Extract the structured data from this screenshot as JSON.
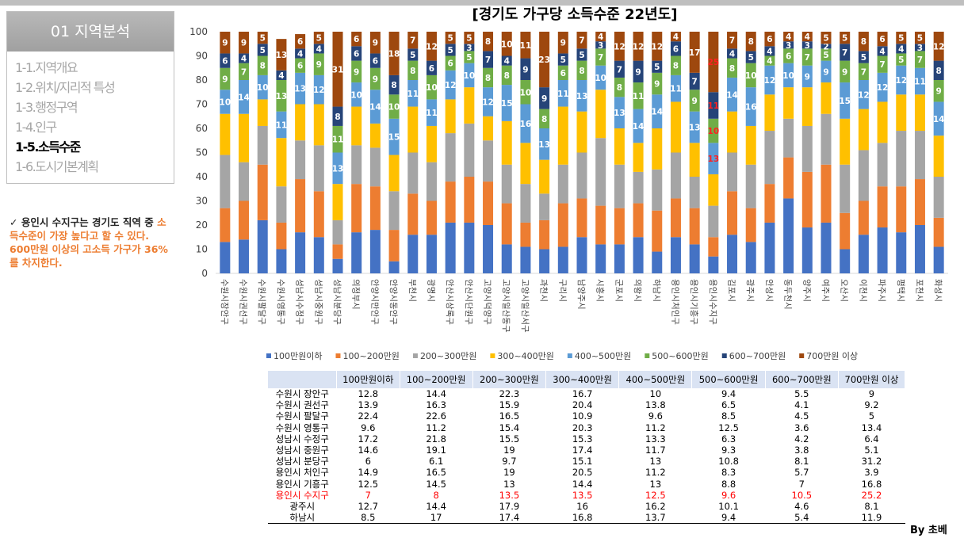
{
  "sidebar": {
    "header": "01 지역분석",
    "items": [
      "1-1.지역개요",
      "1-2.위치/지리적 특성",
      "1-3.행정구역",
      "1-4.인구",
      "1-5.소득수준",
      "1-6.도시기본계획"
    ]
  },
  "note": {
    "text": "✓ 용인시 수지구는 경기도 직역 중 ",
    "highlight": "소득수준이 가장 높다고 할 수 있다. 600만원 이상의 고소득 가구가 36%를 차지한다."
  },
  "chart_data": {
    "type": "stacked_bar",
    "title": "[경기도 가구당 소득수준 22년도]",
    "categories": [
      "수원시장안구",
      "수원시권선구",
      "수원시팔달구",
      "수원시영통구",
      "성남시수정구",
      "성남시중원구",
      "성남시분당구",
      "의정부시",
      "안양시만안구",
      "안양시동안구",
      "부천시",
      "광명시",
      "안산시상록구",
      "안산시단원구",
      "고양시덕양구",
      "고양시일산동구",
      "고양시일산서구",
      "과천시",
      "구리시",
      "남양주시",
      "시흥시",
      "군포시",
      "의왕시",
      "하남시",
      "용인시처인구",
      "용인시기흥구",
      "용인시수지구",
      "김포시",
      "광주시",
      "안성시",
      "동두천시",
      "양주시",
      "여주시",
      "오산시",
      "이천시",
      "파주시",
      "평택시",
      "포천시",
      "화성시"
    ],
    "series": [
      {
        "name": "100만원이하",
        "color": "#4472c4",
        "values": [
          13,
          14,
          22,
          10,
          17,
          15,
          6,
          17,
          18,
          5,
          16,
          16,
          21,
          21,
          20,
          12,
          11,
          10,
          11,
          15,
          12,
          12,
          15,
          9,
          15,
          12,
          7,
          16,
          13,
          21,
          31,
          19,
          21,
          10,
          16,
          19,
          17,
          20,
          11
        ]
      },
      {
        "name": "100~200만원",
        "color": "#ed7d31",
        "values": [
          14,
          16,
          23,
          11,
          22,
          19,
          6,
          20,
          18,
          13,
          17,
          14,
          17,
          19,
          18,
          17,
          10,
          12,
          18,
          16,
          16,
          15,
          14,
          17,
          16,
          15,
          8,
          18,
          14,
          16,
          17,
          23,
          24,
          15,
          14,
          17,
          19,
          19,
          12
        ]
      },
      {
        "name": "200~300만원",
        "color": "#a5a5a5",
        "values": [
          22,
          16,
          16,
          15,
          16,
          19,
          10,
          16,
          16,
          16,
          17,
          16,
          20,
          22,
          17,
          16,
          16,
          11,
          16,
          19,
          28,
          18,
          13,
          17,
          19,
          13,
          13,
          16,
          18,
          22,
          16,
          19,
          21,
          20,
          21,
          18,
          23,
          20,
          17
        ]
      },
      {
        "name": "300~400만원",
        "color": "#ffc000",
        "values": [
          17,
          20,
          11,
          20,
          15,
          17,
          15,
          16,
          10,
          15,
          19,
          15,
          14,
          15,
          10,
          18,
          17,
          14,
          24,
          17,
          20,
          15,
          12,
          17,
          21,
          14,
          13,
          17,
          16,
          15,
          13,
          16,
          13,
          19,
          17,
          17,
          15,
          15,
          17
        ]
      },
      {
        "name": "400~500만원",
        "color": "#5b9bd5",
        "values": [
          10,
          14,
          10,
          11,
          13,
          12,
          13,
          10,
          14,
          15,
          11,
          11,
          12,
          10,
          12,
          15,
          16,
          13,
          11,
          13,
          10,
          13,
          14,
          14,
          11,
          13,
          13,
          14,
          16,
          12,
          10,
          9,
          9,
          15,
          12,
          12,
          12,
          11,
          14
        ]
      },
      {
        "name": "500~600만원",
        "color": "#70ad47",
        "values": [
          9,
          7,
          8,
          13,
          6,
          9,
          11,
          9,
          9,
          10,
          8,
          10,
          6,
          5,
          8,
          8,
          10,
          8,
          6,
          8,
          7,
          8,
          11,
          9,
          8,
          9,
          10,
          8,
          10,
          4,
          6,
          7,
          5,
          9,
          7,
          7,
          5,
          7,
          9
        ]
      },
      {
        "name": "600~700만원",
        "color": "#264478",
        "values": [
          6,
          4,
          5,
          4,
          4,
          4,
          8,
          6,
          6,
          8,
          5,
          6,
          5,
          3,
          7,
          4,
          9,
          9,
          5,
          5,
          3,
          7,
          9,
          5,
          6,
          7,
          11,
          4,
          5,
          4,
          3,
          3,
          2,
          7,
          5,
          4,
          4,
          3,
          8
        ]
      },
      {
        "name": "700만원 이상",
        "color": "#9e480e",
        "values": [
          9,
          9,
          5,
          13,
          6,
          5,
          31,
          6,
          9,
          18,
          7,
          12,
          5,
          5,
          8,
          10,
          11,
          23,
          9,
          7,
          4,
          12,
          12,
          12,
          4,
          17,
          25,
          7,
          8,
          6,
          4,
          4,
          5,
          5,
          8,
          6,
          5,
          5,
          12
        ]
      }
    ],
    "ylim": [
      0,
      100
    ],
    "yticks": [
      0,
      10,
      20,
      30,
      40,
      50,
      60,
      70,
      80,
      90,
      100
    ],
    "legend": "bottom"
  },
  "table": {
    "rows": [
      [
        "수원시 장안구",
        12.8,
        14.4,
        22.3,
        16.7,
        10,
        9.4,
        5.5,
        9
      ],
      [
        "수원시 권선구",
        13.9,
        16.3,
        15.9,
        20.4,
        13.8,
        6.5,
        4.1,
        9.2
      ],
      [
        "수원시 팔달구",
        22.4,
        22.6,
        16.5,
        10.9,
        9.6,
        8.5,
        4.5,
        5
      ],
      [
        "수원시 영통구",
        9.6,
        11.2,
        15.4,
        20.3,
        11.2,
        12.5,
        3.6,
        13.4
      ],
      [
        "성남시 수정구",
        17.2,
        21.8,
        15.5,
        15.3,
        13.3,
        6.3,
        4.2,
        6.4
      ],
      [
        "성남시 중원구",
        14.6,
        19.1,
        19,
        17.4,
        11.7,
        9.3,
        3.8,
        5.1
      ],
      [
        "성남시 분당구",
        6,
        6.1,
        9.7,
        15.1,
        13,
        10.8,
        8.1,
        31.2
      ],
      [
        "용인시 처인구",
        14.9,
        16.5,
        19,
        20.5,
        11.2,
        8.3,
        5.7,
        3.9
      ],
      [
        "용인시 기흥구",
        12.5,
        14.5,
        13,
        14.4,
        13,
        8.8,
        7,
        16.8
      ],
      [
        "용인시 수지구",
        7,
        8,
        13.5,
        13.5,
        12.5,
        9.6,
        10.5,
        25.2
      ],
      [
        "광주시",
        12.7,
        14.4,
        17.9,
        16,
        16.2,
        10.1,
        4.6,
        8.1
      ],
      [
        "하남시",
        8.5,
        17,
        17.4,
        16.8,
        13.7,
        9.4,
        5.4,
        11.9
      ]
    ]
  },
  "footer": "By 초베"
}
